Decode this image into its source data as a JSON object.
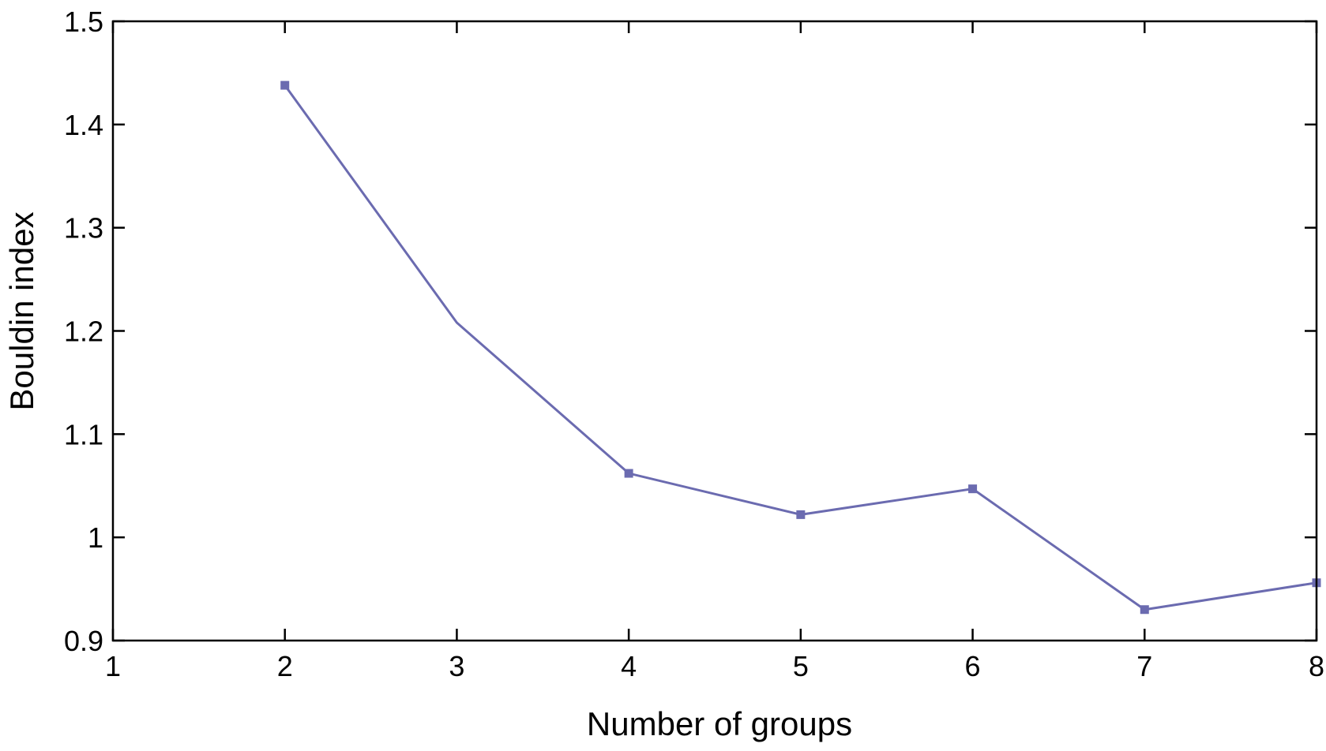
{
  "chart_data": {
    "type": "line",
    "title": "",
    "xlabel": "Number of groups",
    "ylabel": "Bouldin index",
    "xlim": [
      1,
      8
    ],
    "ylim": [
      0.9,
      1.5
    ],
    "xticks": [
      1,
      2,
      3,
      4,
      5,
      6,
      7,
      8
    ],
    "xtick_labels": [
      "1",
      "2",
      "3",
      "4",
      "5",
      "6",
      "7",
      "8"
    ],
    "yticks": [
      0.9,
      1.0,
      1.1,
      1.2,
      1.3,
      1.4,
      1.5
    ],
    "ytick_labels": [
      "0.9",
      "1",
      "1.1",
      "1.2",
      "1.3",
      "1.4",
      "1.5"
    ],
    "grid": false,
    "legend": "none",
    "series": [
      {
        "x": [
          2,
          3,
          4,
          5,
          6,
          7,
          8
        ],
        "y": [
          1.438,
          1.208,
          1.062,
          1.022,
          1.047,
          0.93,
          0.956
        ],
        "markers": [
          true,
          false,
          true,
          true,
          true,
          true,
          true
        ],
        "color": "#6b6bb0"
      }
    ]
  }
}
